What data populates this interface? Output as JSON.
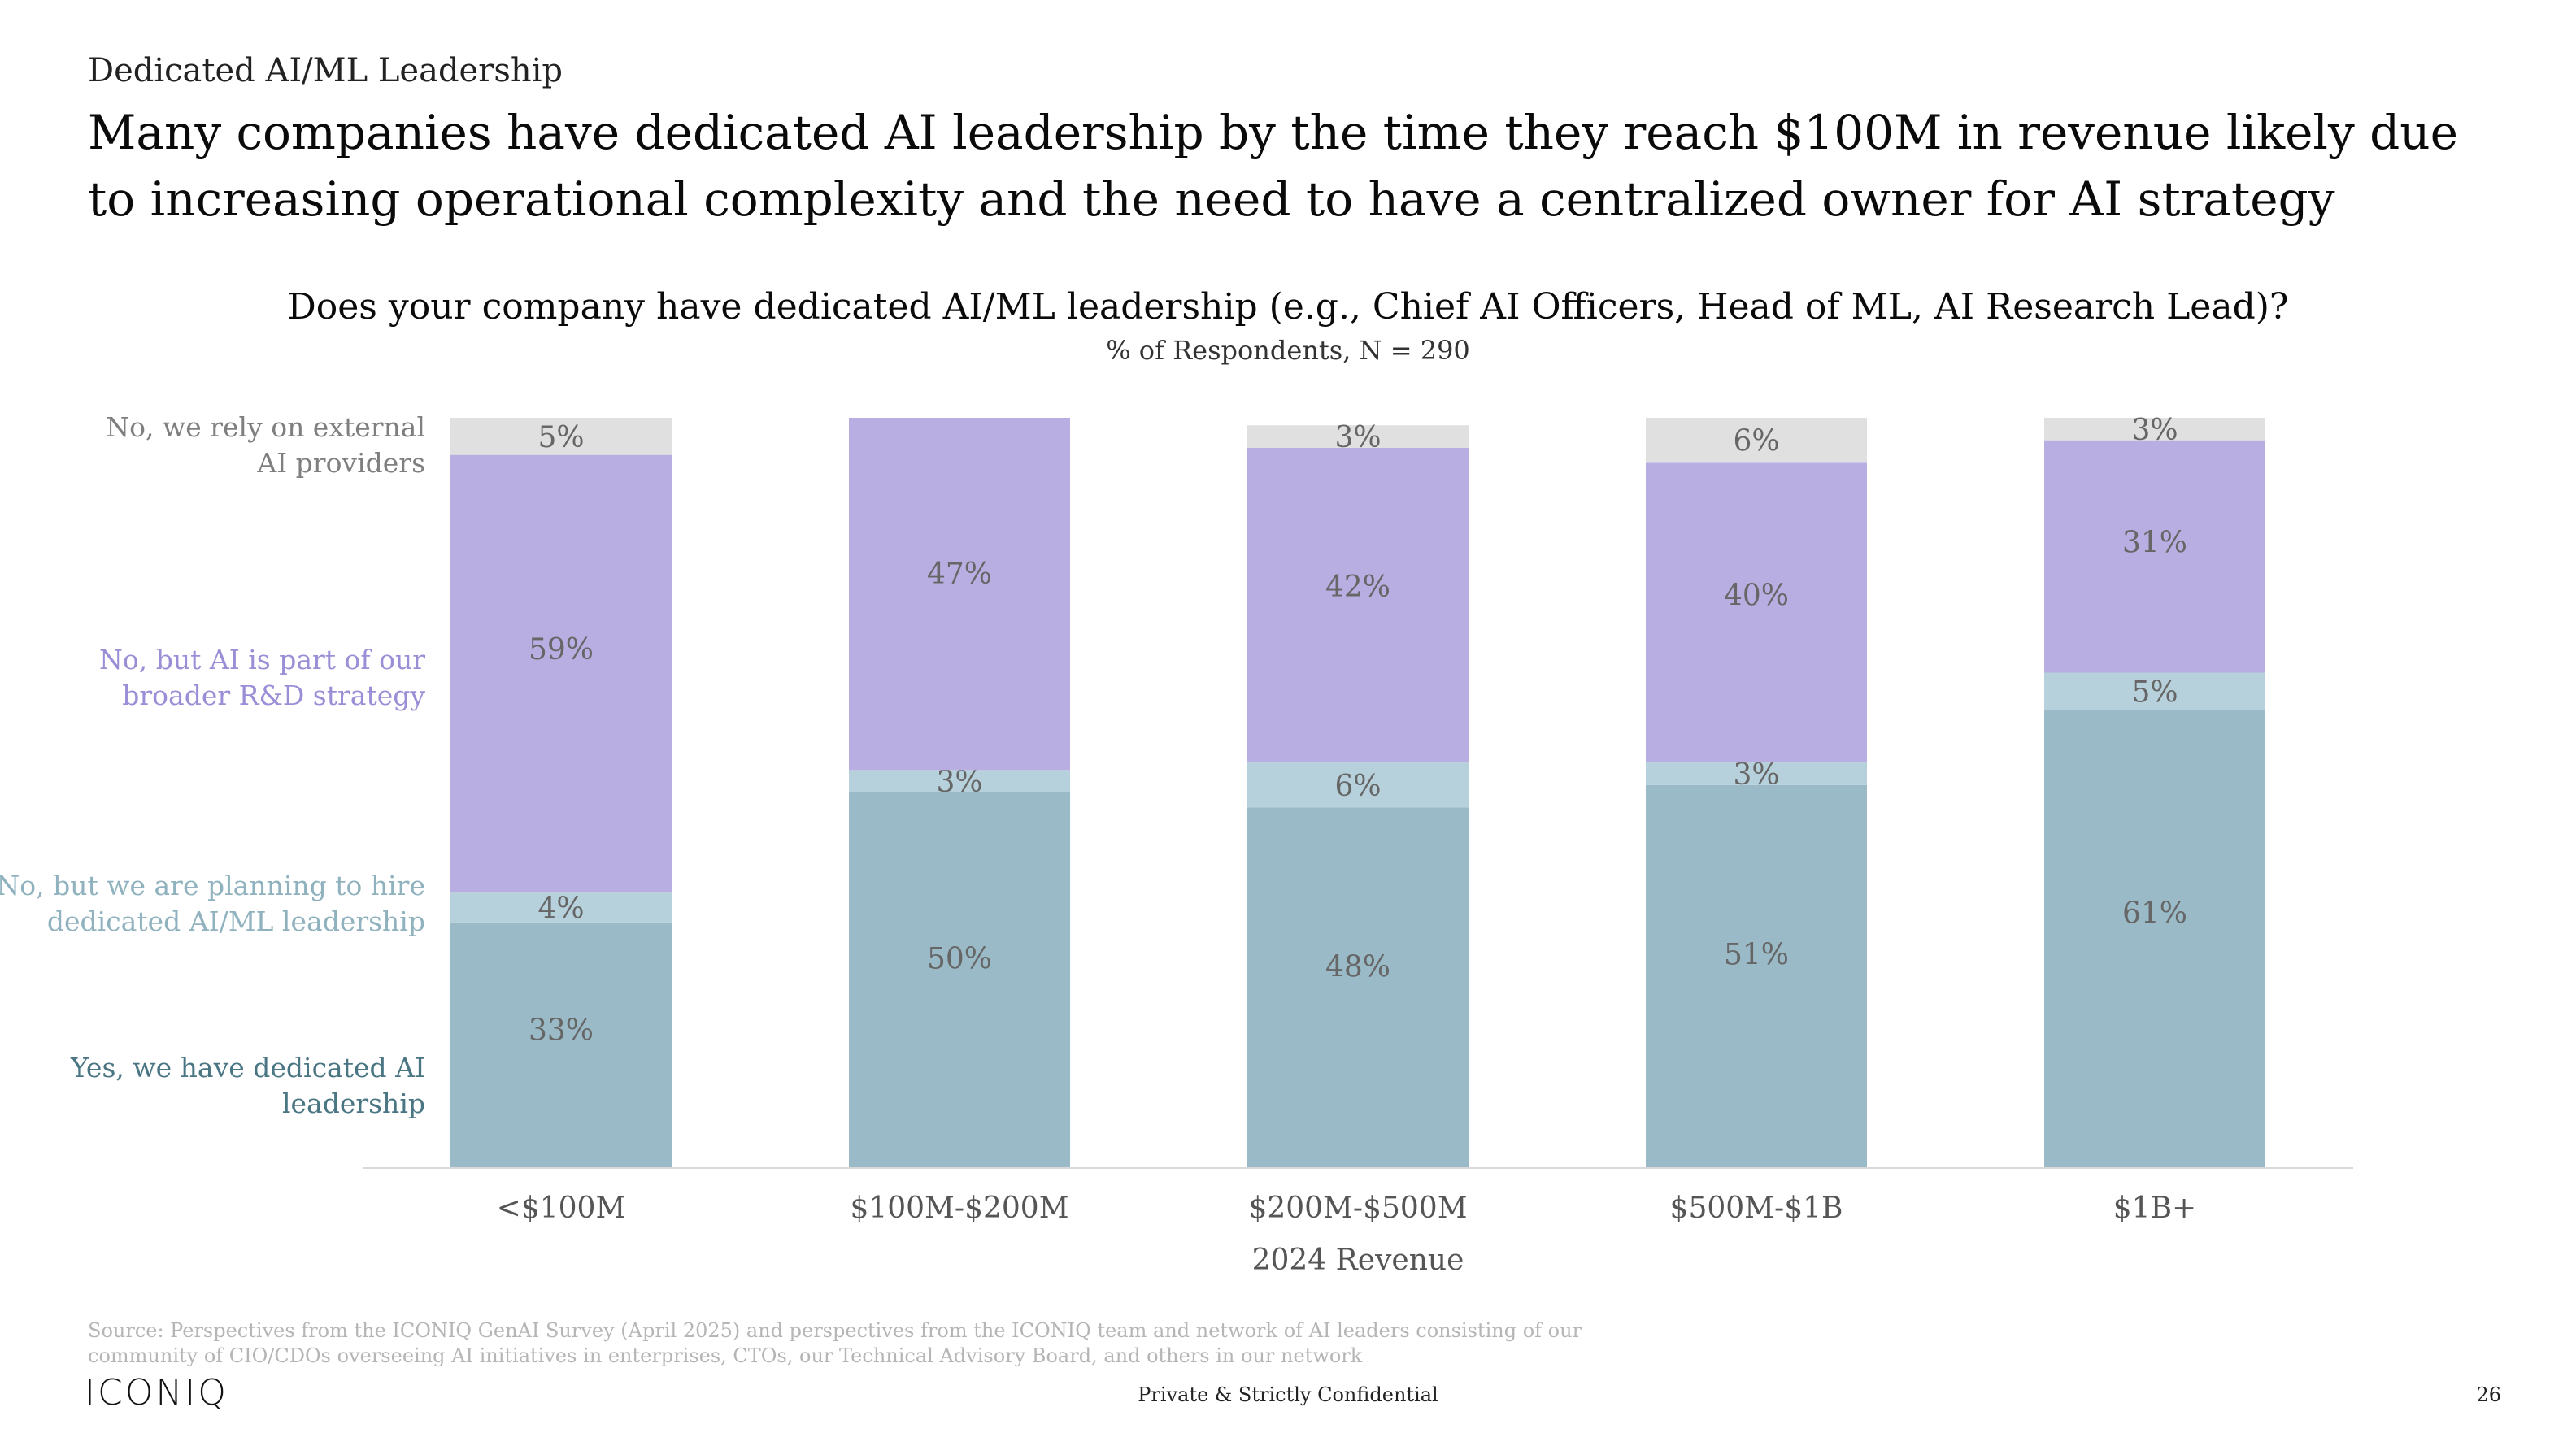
{
  "header": {
    "eyebrow": "Dedicated AI/ML Leadership",
    "headline": "Many companies have dedicated AI leadership by the time they reach $100M in revenue likely due to increasing operational complexity and the need to have a centralized owner for AI strategy"
  },
  "colors": {
    "yes": "#99BAC6",
    "planning": "#B6D1DB",
    "rd": "#B8AEE2",
    "external": "#E0E0E0",
    "legend_external": "#7F7F7F",
    "legend_rd": "#9A8FD6",
    "legend_planning": "#8FB2BE",
    "legend_yes": "#4A7684"
  },
  "chart_data": {
    "type": "bar",
    "stacked": true,
    "title": "Does your company have dedicated AI/ML leadership (e.g., Chief AI Officers, Head of ML, AI Research Lead)?",
    "subtitle": "% of Respondents, N = 290",
    "xlabel": "2024 Revenue",
    "ylabel": "",
    "ylim": [
      0,
      100
    ],
    "categories": [
      "<$100M",
      "$100M-$200M",
      "$200M-$500M",
      "$500M-$1B",
      "$1B+"
    ],
    "series": [
      {
        "name": "Yes, we have dedicated AI leadership",
        "key": "yes",
        "values": [
          33,
          50,
          48,
          51,
          61
        ]
      },
      {
        "name": "No, but we are planning to hire dedicated AI/ML leadership",
        "key": "planning",
        "values": [
          4,
          3,
          6,
          3,
          5
        ]
      },
      {
        "name": "No, but AI is part of our broader R&D strategy",
        "key": "rd",
        "values": [
          59,
          47,
          42,
          40,
          31
        ]
      },
      {
        "name": "No, we rely on external AI providers",
        "key": "external",
        "values": [
          5,
          null,
          3,
          6,
          3
        ]
      }
    ],
    "labels": {
      "yes": [
        "33%",
        "50%",
        "48%",
        "51%",
        "61%"
      ],
      "planning": [
        "4%",
        "3%",
        "6%",
        "3%",
        "5%"
      ],
      "rd": [
        "59%",
        "47%",
        "42%",
        "40%",
        "31%"
      ],
      "external": [
        "5%",
        "",
        "3%",
        "6%",
        "3%"
      ]
    },
    "legend": {
      "external": [
        "No, we rely on external",
        "AI providers"
      ],
      "rd": [
        "No, but AI is part of our",
        "broader R&D strategy"
      ],
      "planning": [
        "No, but we are planning to hire",
        "dedicated AI/ML leadership"
      ],
      "yes": [
        "Yes, we have dedicated AI",
        "leadership"
      ]
    }
  },
  "footer": {
    "source": "Source: Perspectives from the ICONIQ GenAI Survey (April 2025) and perspectives from the ICONIQ team and network of AI leaders consisting of our community of CIO/CDOs overseeing AI initiatives in enterprises, CTOs, our Technical Advisory Board, and others in our network",
    "logo": "ICONIQ",
    "confidential": "Private & Strictly Confidential",
    "page_number": "26"
  }
}
